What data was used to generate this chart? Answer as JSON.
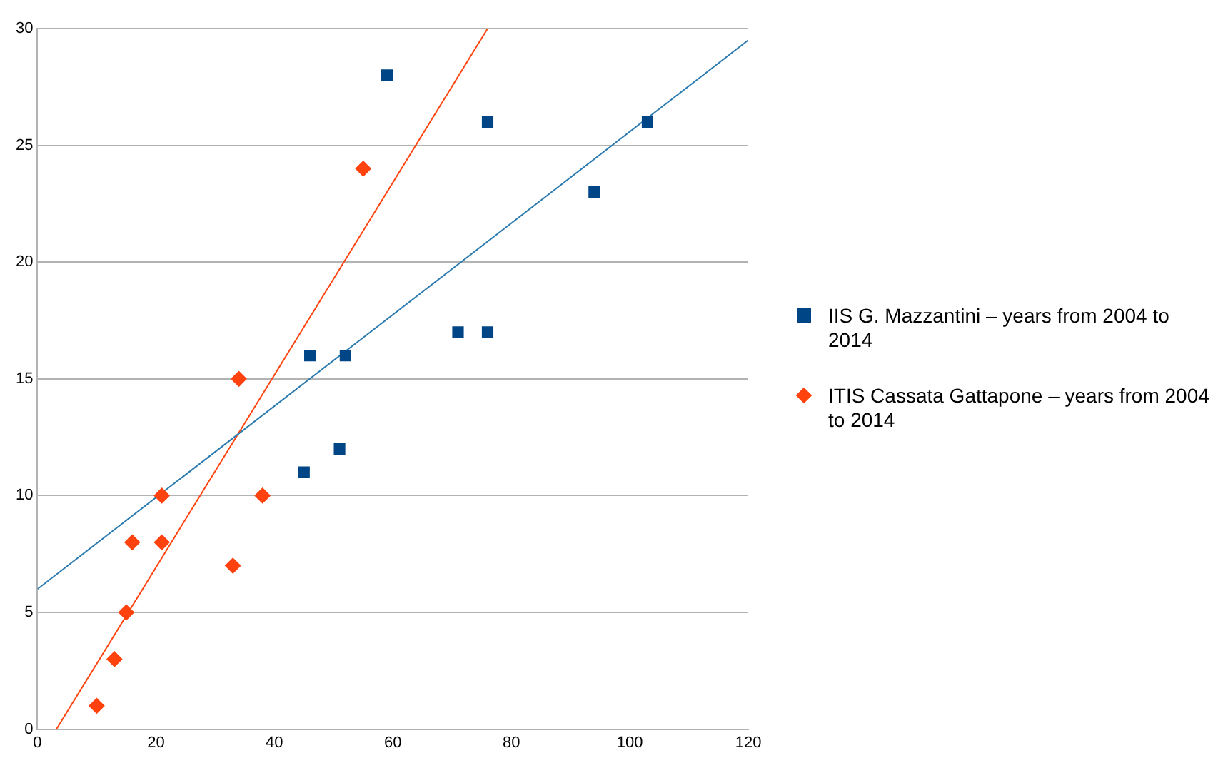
{
  "chart_data": {
    "type": "scatter",
    "xlim": [
      0,
      120
    ],
    "ylim": [
      0,
      30
    ],
    "xticks": [
      0,
      20,
      40,
      60,
      80,
      100,
      120
    ],
    "yticks": [
      0,
      5,
      10,
      15,
      20,
      25,
      30
    ],
    "grid": "y",
    "legend": "right",
    "series": [
      {
        "name": "IIS G. Mazzantini – years from 2004 to 2014",
        "color": "#004586",
        "marker": "square",
        "x": [
          46,
          52,
          59,
          76,
          103,
          94,
          71,
          76,
          45,
          51
        ],
        "values": [
          16,
          16,
          28,
          26,
          26,
          23,
          17,
          17,
          11,
          12
        ]
      },
      {
        "name": "ITIS Cassata Gattapone – years from 2004 to 2014",
        "color": "#ff420e",
        "marker": "diamond",
        "x": [
          10,
          13,
          15,
          16,
          21,
          21,
          33,
          34,
          38,
          55
        ],
        "values": [
          1,
          3,
          5,
          8,
          8,
          10,
          7,
          15,
          10,
          24
        ]
      },
      {
        "type": "line",
        "color": "#2a7ab0",
        "marker": "none",
        "x": [
          0,
          120
        ],
        "values": [
          6,
          29.5
        ]
      },
      {
        "type": "line",
        "color": "#ff420e",
        "marker": "none",
        "x": [
          3.2,
          76
        ],
        "values": [
          0,
          30
        ]
      }
    ]
  }
}
